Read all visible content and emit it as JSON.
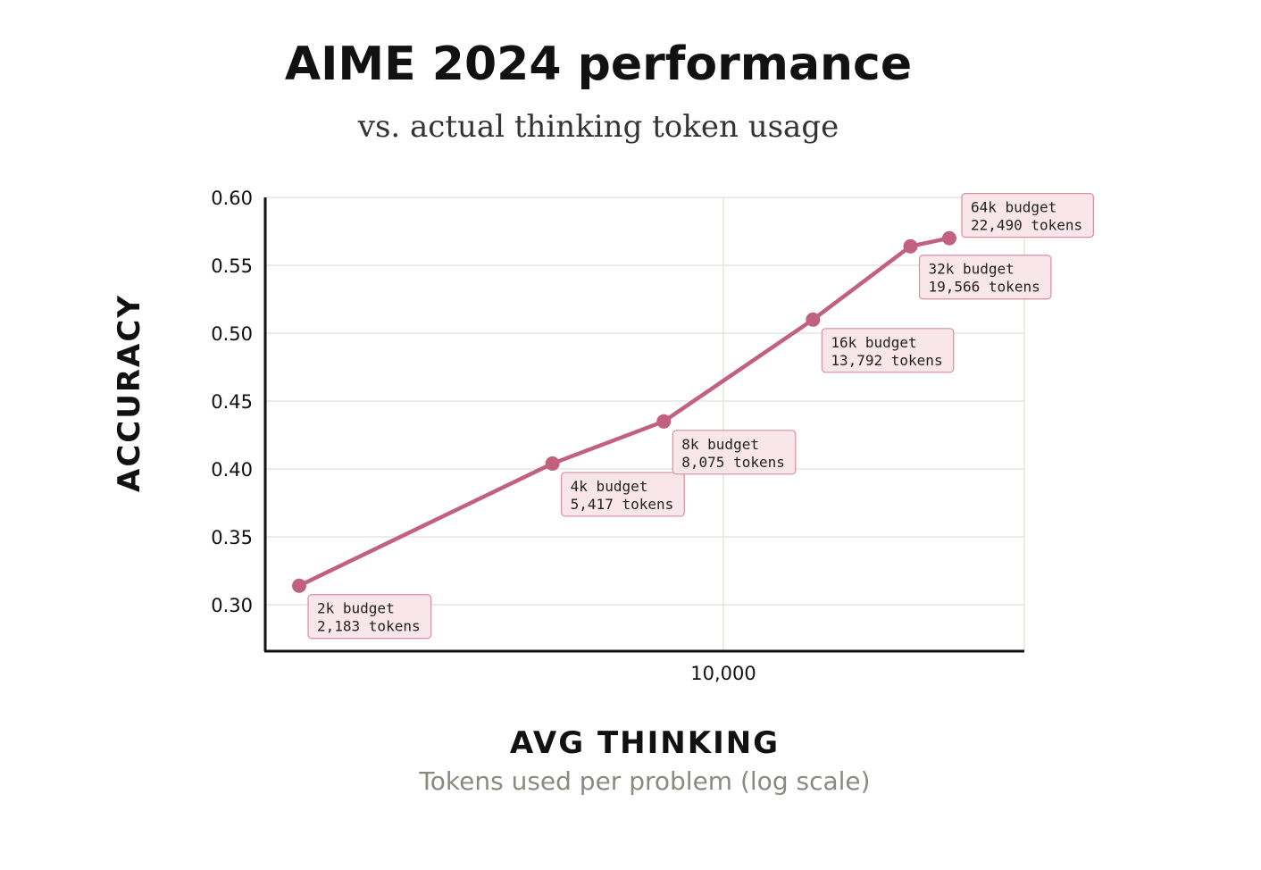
{
  "chart_data": {
    "type": "line",
    "title": "AIME 2024 performance",
    "subtitle": "vs. actual thinking token usage",
    "ylabel": "ACCURACY",
    "xlabel": "AVG THINKING",
    "xsublabel": "Tokens used per problem (log scale)",
    "x_scale": "log",
    "xlim": [
      2000,
      30000
    ],
    "ylim": [
      0.275,
      0.6
    ],
    "y_ticks": [
      "0.60",
      "0.55",
      "0.50",
      "0.45",
      "0.40",
      "0.35",
      "0.30"
    ],
    "x_ticks": [
      "10,000"
    ],
    "grid": true,
    "series": [
      {
        "color": "#c2607f",
        "points": [
          {
            "x": 2183,
            "y": 0.314,
            "label1": "2k budget",
            "label2": "2,183 tokens"
          },
          {
            "x": 5417,
            "y": 0.404,
            "label1": "4k budget",
            "label2": "5,417 tokens"
          },
          {
            "x": 8075,
            "y": 0.435,
            "label1": "8k budget",
            "label2": "8,075 tokens"
          },
          {
            "x": 13792,
            "y": 0.51,
            "label1": "16k budget",
            "label2": "13,792 tokens"
          },
          {
            "x": 19566,
            "y": 0.564,
            "label1": "32k budget",
            "label2": "19,566 tokens"
          },
          {
            "x": 22490,
            "y": 0.57,
            "label1": "64k budget",
            "label2": "22,490 tokens"
          }
        ]
      }
    ]
  }
}
